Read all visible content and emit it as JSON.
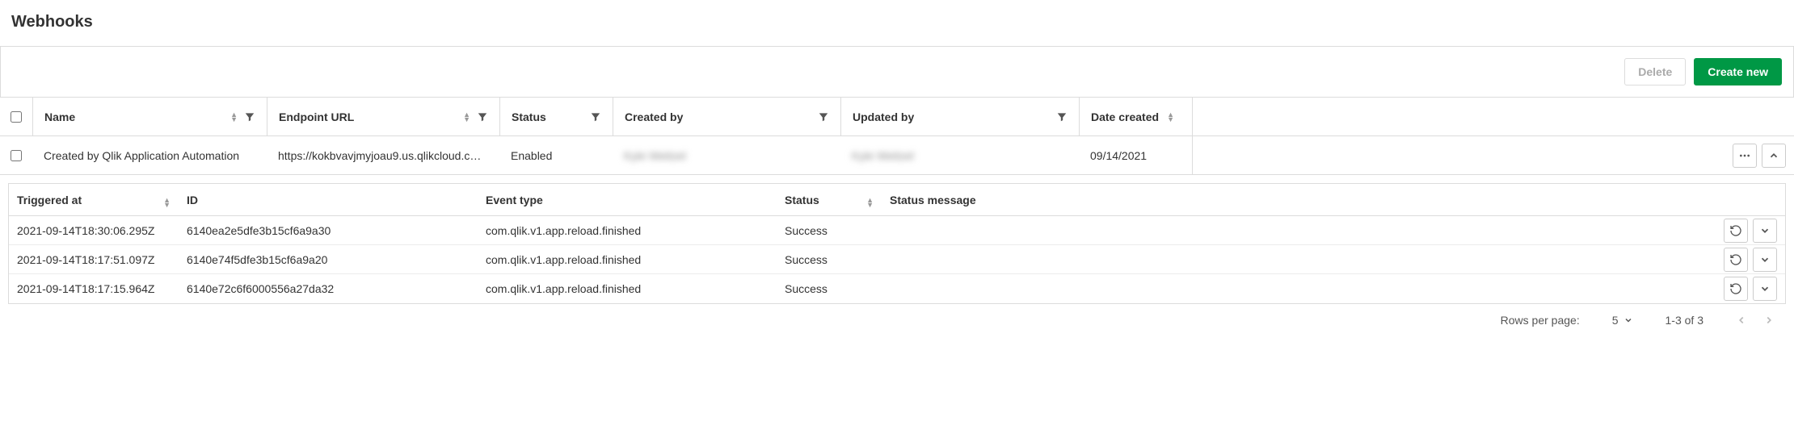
{
  "page": {
    "title": "Webhooks"
  },
  "toolbar": {
    "delete_label": "Delete",
    "create_label": "Create new"
  },
  "columns": {
    "name": "Name",
    "endpoint": "Endpoint URL",
    "status": "Status",
    "created_by": "Created by",
    "updated_by": "Updated by",
    "date_created": "Date created"
  },
  "row": {
    "name": "Created by Qlik Application Automation",
    "endpoint": "https://kokbvavjmyjoau9.us.qlikcloud.c…",
    "status": "Enabled",
    "created_by": "Kyle Weitzel",
    "updated_by": "Kyle Weitzel",
    "date_created": "09/14/2021"
  },
  "events": {
    "columns": {
      "triggered": "Triggered at",
      "id": "ID",
      "event_type": "Event type",
      "status": "Status",
      "status_msg": "Status message"
    },
    "rows": [
      {
        "triggered": "2021-09-14T18:30:06.295Z",
        "id": "6140ea2e5dfe3b15cf6a9a30",
        "event_type": "com.qlik.v1.app.reload.finished",
        "status": "Success",
        "msg": ""
      },
      {
        "triggered": "2021-09-14T18:17:51.097Z",
        "id": "6140e74f5dfe3b15cf6a9a20",
        "event_type": "com.qlik.v1.app.reload.finished",
        "status": "Success",
        "msg": ""
      },
      {
        "triggered": "2021-09-14T18:17:15.964Z",
        "id": "6140e72c6f6000556a27da32",
        "event_type": "com.qlik.v1.app.reload.finished",
        "status": "Success",
        "msg": ""
      }
    ],
    "rows_per_page_label": "Rows per page:",
    "rows_per_page_value": "5",
    "range": "1-3 of 3"
  },
  "colors": {
    "primary_green": "#009845",
    "border": "#dcdcdc",
    "text": "#333333",
    "muted": "#999999"
  }
}
